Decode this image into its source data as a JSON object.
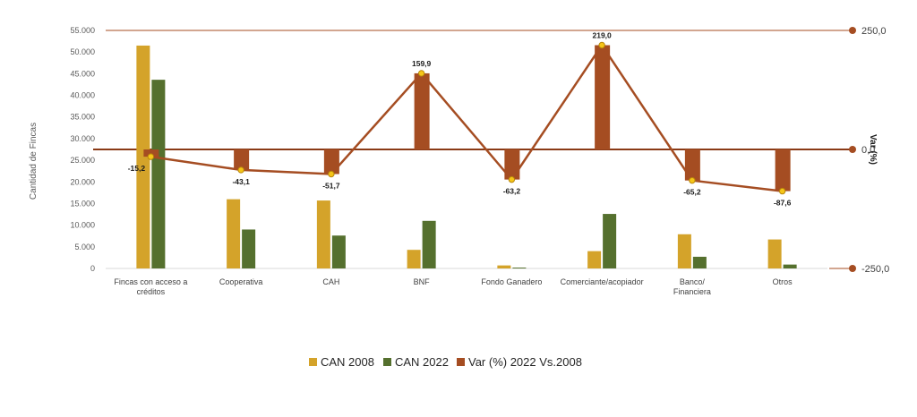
{
  "chart_data": {
    "type": "bar",
    "ylabel": "Cantidad de Fincas",
    "y2label": "Var (%)",
    "ylim": [
      0,
      55000
    ],
    "y_ticks": [
      "0",
      "5.000",
      "10.000",
      "15.000",
      "20.000",
      "25.000",
      "30.000",
      "35.000",
      "40.000",
      "45.000",
      "50.000",
      "55.000"
    ],
    "y_tick_values": [
      0,
      5000,
      10000,
      15000,
      20000,
      25000,
      30000,
      35000,
      40000,
      45000,
      50000,
      55000
    ],
    "y2lim": [
      -250,
      250
    ],
    "y2_ticks": [
      "-250,0",
      "0,0",
      "250,0"
    ],
    "y2_tick_values": [
      -250,
      0,
      250
    ],
    "categories": [
      [
        "Fincas con acceso a",
        "créditos"
      ],
      [
        "Cooperativa"
      ],
      [
        "CAH"
      ],
      [
        "BNF"
      ],
      [
        "Fondo Ganadero"
      ],
      [
        "Comerciante/acopiador"
      ],
      [
        "Banco/",
        "Financiera"
      ],
      [
        "Otros"
      ]
    ],
    "series": [
      {
        "name": "CAN 2008",
        "color": "#d4a32a",
        "axis": "left",
        "values": [
          51500,
          16000,
          15700,
          4300,
          700,
          4000,
          7900,
          6700
        ]
      },
      {
        "name": "CAN 2022",
        "color": "#55702e",
        "axis": "left",
        "values": [
          43600,
          9000,
          7600,
          11000,
          200,
          12600,
          2700,
          900
        ]
      },
      {
        "name": "Var (%) 2022 Vs.2008",
        "color": "#a54d22",
        "axis": "right",
        "values": [
          -15.2,
          -43.1,
          -51.7,
          159.9,
          -63.2,
          219.0,
          -65.2,
          -87.6
        ]
      }
    ],
    "data_labels": [
      "-15,2",
      "-43,1",
      "-51,7",
      "159,9",
      "-63,2",
      "219,0",
      "-65,2",
      "-87,6"
    ],
    "grid": false,
    "legend_position": "bottom"
  }
}
